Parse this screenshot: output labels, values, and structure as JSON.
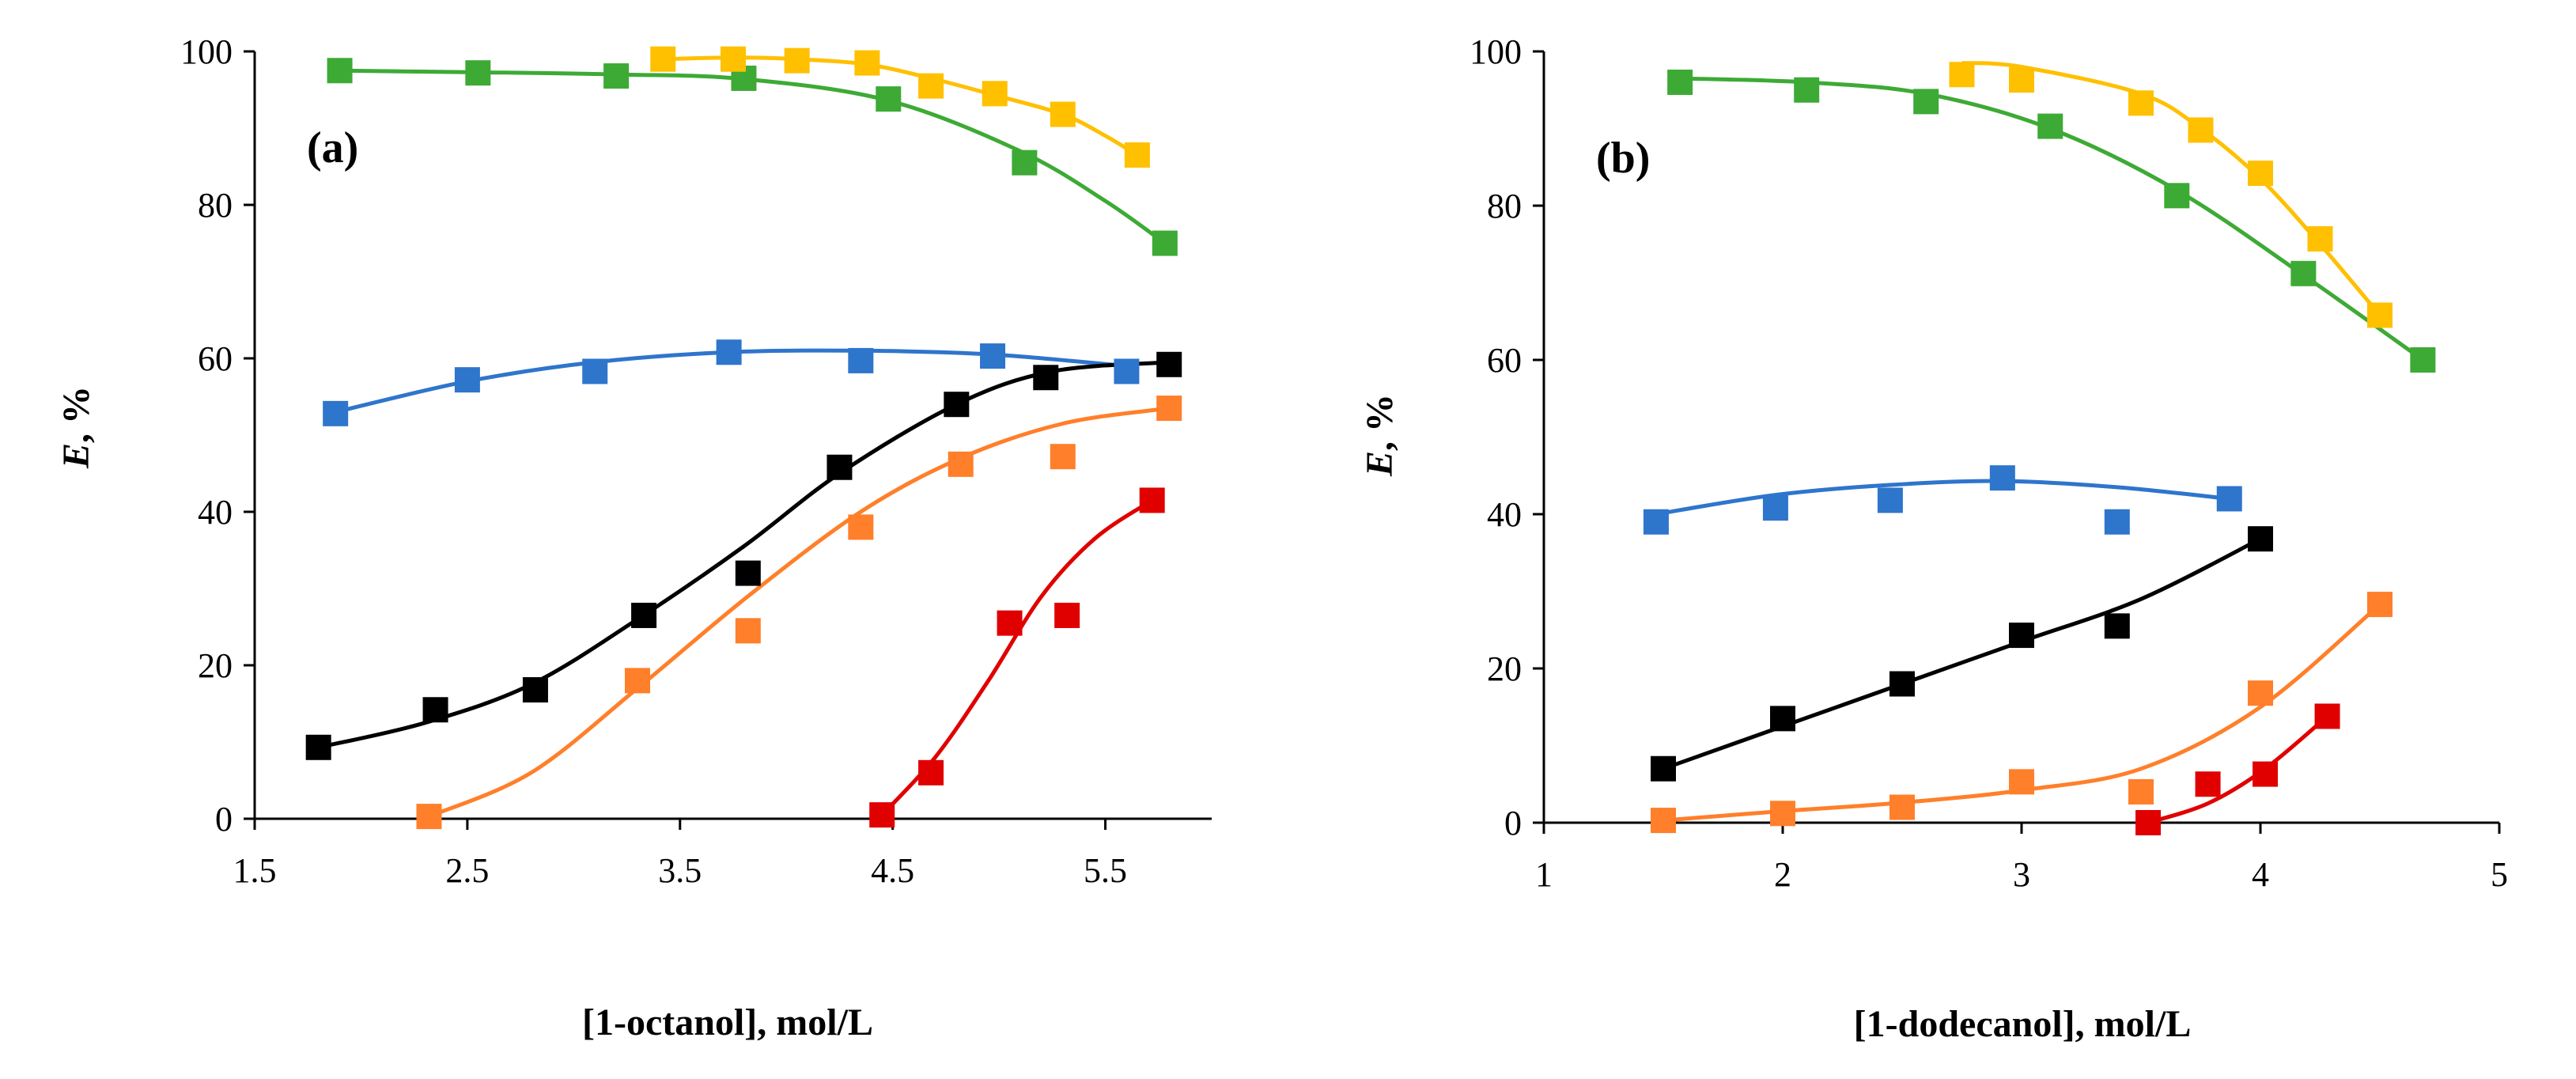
{
  "chart_data": [
    {
      "type": "scatter",
      "panel_label": "(a)",
      "xlabel": "[1-octanol], mol/L",
      "ylabel": "E, %",
      "ylabel_italic": "E",
      "ylabel_rest": ", %",
      "xlim": [
        1.5,
        6.0
      ],
      "ylim": [
        0,
        100
      ],
      "xticks": [
        1.5,
        2.5,
        3.5,
        4.5,
        5.5
      ],
      "xtick_labels": [
        "1.5",
        "2.5",
        "3.5",
        "4.5",
        "5.5"
      ],
      "yticks": [
        0,
        20,
        40,
        60,
        80,
        100
      ],
      "ytick_labels": [
        "0",
        "20",
        "40",
        "60",
        "80",
        "100"
      ],
      "grid": false,
      "series": [
        {
          "name": "green",
          "color": "#3daa35",
          "x": [
            1.9,
            2.55,
            3.2,
            3.8,
            4.48,
            5.12,
            5.78
          ],
          "y": [
            97.5,
            97.2,
            96.8,
            96.5,
            93.8,
            85.5,
            75.0
          ],
          "fit": [
            [
              1.9,
              97.5
            ],
            [
              2.5,
              97.3
            ],
            [
              3.2,
              97.0
            ],
            [
              3.8,
              96.4
            ],
            [
              4.48,
              93.6
            ],
            [
              5.1,
              87.0
            ],
            [
              5.5,
              80.5
            ],
            [
              5.78,
              75.0
            ]
          ]
        },
        {
          "name": "yellow",
          "color": "#ffc000",
          "x": [
            3.42,
            3.75,
            4.05,
            4.38,
            4.68,
            4.98,
            5.3,
            5.65
          ],
          "y": [
            99.0,
            99.0,
            98.8,
            98.5,
            95.5,
            94.5,
            91.8,
            86.5
          ],
          "fit": [
            [
              3.42,
              99.0
            ],
            [
              3.75,
              99.2
            ],
            [
              4.05,
              99.0
            ],
            [
              4.38,
              98.3
            ],
            [
              4.68,
              96.5
            ],
            [
              4.98,
              94.3
            ],
            [
              5.3,
              91.8
            ],
            [
              5.5,
              89.0
            ],
            [
              5.65,
              86.5
            ]
          ]
        },
        {
          "name": "blue",
          "color": "#2e75cc",
          "x": [
            1.88,
            2.5,
            3.1,
            3.73,
            4.35,
            4.97,
            5.6
          ],
          "y": [
            52.8,
            57.2,
            58.3,
            60.8,
            59.7,
            60.3,
            58.3
          ],
          "fit": [
            [
              1.88,
              53.0
            ],
            [
              2.5,
              57.0
            ],
            [
              3.1,
              59.5
            ],
            [
              3.73,
              60.8
            ],
            [
              4.35,
              61.0
            ],
            [
              4.97,
              60.5
            ],
            [
              5.6,
              59.0
            ]
          ]
        },
        {
          "name": "black",
          "color": "#000000",
          "x": [
            1.8,
            2.35,
            2.82,
            3.33,
            3.82,
            4.25,
            4.8,
            5.22,
            5.8
          ],
          "y": [
            9.3,
            14.2,
            16.8,
            26.5,
            32.0,
            45.8,
            54.0,
            57.5,
            59.2
          ],
          "fit": [
            [
              1.8,
              9.3
            ],
            [
              2.3,
              12.5
            ],
            [
              2.8,
              17.5
            ],
            [
              3.3,
              26.0
            ],
            [
              3.8,
              35.5
            ],
            [
              4.25,
              45.0
            ],
            [
              4.8,
              54.0
            ],
            [
              5.25,
              58.3
            ],
            [
              5.8,
              59.5
            ]
          ]
        },
        {
          "name": "orange",
          "color": "#ff7f2a",
          "x": [
            2.32,
            3.3,
            3.82,
            4.35,
            4.82,
            5.3,
            5.8
          ],
          "y": [
            0.3,
            18.0,
            24.5,
            38.0,
            46.2,
            47.2,
            53.5
          ],
          "fit": [
            [
              2.32,
              0.3
            ],
            [
              2.8,
              6.0
            ],
            [
              3.3,
              17.0
            ],
            [
              3.82,
              29.0
            ],
            [
              4.35,
              40.0
            ],
            [
              4.82,
              47.0
            ],
            [
              5.3,
              51.5
            ],
            [
              5.8,
              53.5
            ]
          ]
        },
        {
          "name": "red",
          "color": "#e00000",
          "x": [
            4.45,
            4.68,
            5.05,
            5.32,
            5.72
          ],
          "y": [
            0.5,
            6.0,
            25.5,
            26.5,
            41.5
          ],
          "fit": [
            [
              4.45,
              0.5
            ],
            [
              4.7,
              8.0
            ],
            [
              4.95,
              18.0
            ],
            [
              5.2,
              29.0
            ],
            [
              5.45,
              36.5
            ],
            [
              5.72,
              41.5
            ]
          ]
        }
      ]
    },
    {
      "type": "scatter",
      "panel_label": "(b)",
      "xlabel": "[1-dodecanol], mol/L",
      "ylabel": "E, %",
      "ylabel_italic": "E",
      "ylabel_rest": ", %",
      "xlim": [
        1,
        5
      ],
      "ylim": [
        0,
        100
      ],
      "xticks": [
        1,
        2,
        3,
        4,
        5
      ],
      "xtick_labels": [
        "1",
        "2",
        "3",
        "4",
        "5"
      ],
      "yticks": [
        0,
        20,
        40,
        60,
        80,
        100
      ],
      "ytick_labels": [
        "0",
        "20",
        "40",
        "60",
        "80",
        "100"
      ],
      "grid": false,
      "series": [
        {
          "name": "green",
          "color": "#3daa35",
          "x": [
            1.57,
            2.1,
            2.6,
            3.12,
            3.65,
            4.18,
            4.68
          ],
          "y": [
            96.0,
            95.0,
            93.5,
            90.3,
            81.3,
            71.2,
            60.0
          ],
          "fit": [
            [
              1.57,
              96.5
            ],
            [
              2.1,
              96.0
            ],
            [
              2.6,
              94.5
            ],
            [
              3.12,
              90.0
            ],
            [
              3.65,
              82.0
            ],
            [
              4.18,
              71.0
            ],
            [
              4.68,
              60.0
            ]
          ]
        },
        {
          "name": "yellow",
          "color": "#ffc000",
          "x": [
            2.75,
            3.0,
            3.5,
            3.75,
            4.0,
            4.25,
            4.5
          ],
          "y": [
            97.0,
            96.3,
            93.3,
            89.8,
            84.2,
            75.7,
            65.8
          ],
          "fit": [
            [
              2.75,
              98.5
            ],
            [
              3.0,
              98.0
            ],
            [
              3.5,
              94.5
            ],
            [
              3.75,
              90.0
            ],
            [
              4.0,
              83.5
            ],
            [
              4.25,
              75.0
            ],
            [
              4.5,
              65.8
            ]
          ]
        },
        {
          "name": "blue",
          "color": "#2e75cc",
          "x": [
            1.47,
            1.97,
            2.45,
            2.92,
            3.4,
            3.87
          ],
          "y": [
            39.0,
            40.8,
            41.8,
            44.7,
            39.0,
            42.0
          ],
          "fit": [
            [
              1.47,
              40.0
            ],
            [
              1.97,
              42.5
            ],
            [
              2.45,
              43.8
            ],
            [
              2.92,
              44.3
            ],
            [
              3.4,
              43.5
            ],
            [
              3.87,
              42.0
            ]
          ]
        },
        {
          "name": "black",
          "color": "#000000",
          "x": [
            1.5,
            2.0,
            2.5,
            3.0,
            3.4,
            4.0
          ],
          "y": [
            7.0,
            13.5,
            18.0,
            24.3,
            25.5,
            36.8
          ],
          "fit": [
            [
              1.5,
              7.0
            ],
            [
              2.0,
              12.5
            ],
            [
              2.5,
              18.0
            ],
            [
              3.0,
              23.5
            ],
            [
              3.5,
              29.0
            ],
            [
              4.0,
              36.8
            ]
          ]
        },
        {
          "name": "orange",
          "color": "#ff7f2a",
          "x": [
            1.5,
            2.0,
            2.5,
            3.0,
            3.5,
            4.0,
            4.5
          ],
          "y": [
            0.3,
            1.2,
            2.0,
            5.3,
            4.0,
            16.8,
            28.3
          ],
          "fit": [
            [
              1.5,
              0.3
            ],
            [
              2.0,
              1.5
            ],
            [
              2.5,
              2.6
            ],
            [
              3.0,
              4.2
            ],
            [
              3.5,
              7.0
            ],
            [
              4.0,
              15.0
            ],
            [
              4.5,
              28.3
            ]
          ]
        },
        {
          "name": "red",
          "color": "#e00000",
          "x": [
            3.53,
            3.78,
            4.02,
            4.28
          ],
          "y": [
            0.0,
            5.0,
            6.3,
            13.8
          ],
          "fit": [
            [
              3.53,
              0.0
            ],
            [
              3.78,
              2.5
            ],
            [
              4.02,
              7.0
            ],
            [
              4.28,
              13.8
            ]
          ]
        }
      ]
    }
  ]
}
